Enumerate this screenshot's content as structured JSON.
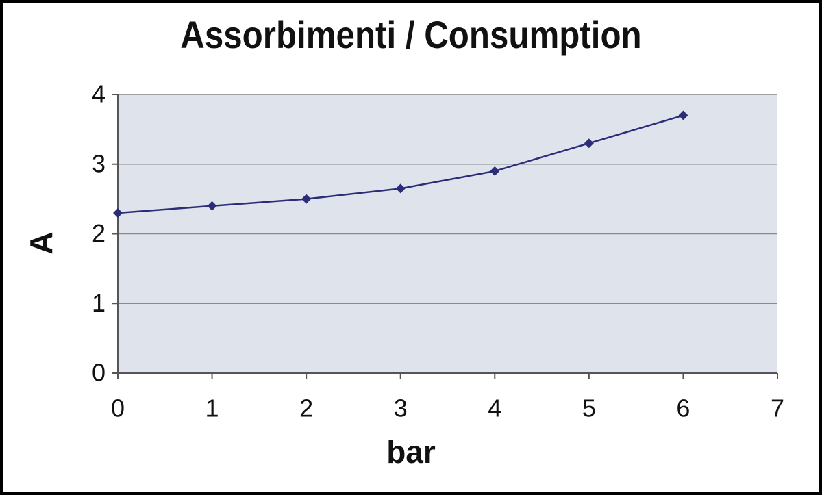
{
  "chart_data": {
    "type": "line",
    "title": "Assorbimenti / Consumption",
    "x_label": "bar",
    "y_label": "A",
    "series": [
      {
        "name": "A",
        "color": "#2b2d78",
        "x": [
          0,
          1,
          2,
          3,
          4,
          5,
          6
        ],
        "values": [
          2.3,
          2.4,
          2.5,
          2.65,
          2.9,
          3.3,
          3.7
        ]
      }
    ],
    "xlim": [
      0,
      7
    ],
    "xticks": [
      0,
      1,
      2,
      3,
      4,
      5,
      6,
      7
    ],
    "ylim": [
      0,
      4
    ],
    "yticks": [
      0,
      1,
      2,
      3,
      4
    ],
    "grid": true
  }
}
